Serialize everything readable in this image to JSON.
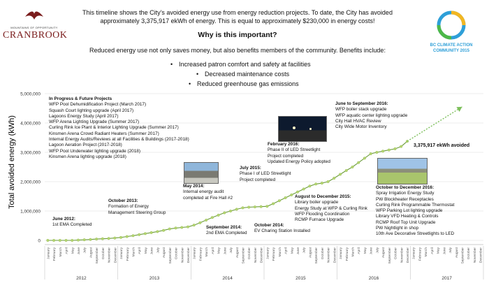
{
  "header": {
    "intro_line1": "This timeline shows the City’s avoided energy use from energy reduction projects. To date, the City has avoided",
    "intro_line2": "approximately 3,375,917 ekWh of energy. This is equal to approximately $230,000 in energy costs!",
    "question": "Why is this important?",
    "benefits_intro": "Reduced energy use not only saves money, but also benefits members of the community. Benefits include:",
    "benefits": [
      "Increased patron comfort and safety at facilities",
      "Decreased maintenance costs",
      "Reduced greenhouse gas emissions"
    ]
  },
  "logo_left": {
    "tagline": "MOUNTAINS OF OPPORTUNITY",
    "name": "CRANBROOK"
  },
  "logo_right": {
    "line1": "BC CLIMATE ACTION",
    "line2": "COMMUNITY 2015"
  },
  "chart_data": {
    "type": "line",
    "ylabel": "Total avoided energy (kWh)",
    "ylim": [
      0,
      5000000
    ],
    "yticks": [
      "0",
      "1,000,000",
      "2,000,000",
      "3,000,000",
      "4,000,000",
      "5,000,000"
    ],
    "month_labels": [
      "January",
      "February",
      "March",
      "April",
      "May",
      "June",
      "July",
      "August",
      "September",
      "October",
      "November",
      "December"
    ],
    "years": [
      "2012",
      "2013",
      "2014",
      "2015",
      "2016",
      "2017"
    ],
    "x_start": "2012-01",
    "series": [
      {
        "values": [
          0,
          0,
          0,
          0,
          0,
          10000,
          20000,
          30000,
          45000,
          55000,
          65000,
          80000,
          100000,
          130000,
          160000,
          195000,
          230000,
          265000,
          300000,
          340000,
          390000,
          420000,
          440000,
          460000,
          520000,
          600000,
          690000,
          780000,
          860000,
          940000,
          1000000,
          1060000,
          1110000,
          1130000,
          1140000,
          1150000,
          1160000,
          1250000,
          1350000,
          1450000,
          1550000,
          1650000,
          1750000,
          1850000,
          1920000,
          1950000,
          2000000,
          2120000,
          2250000,
          2380000,
          2500000,
          2650000,
          2800000,
          2950000,
          3000000,
          3040000,
          3080000,
          3120000,
          3200000,
          3375917
        ],
        "point_color": "#b6d672",
        "line_color": "#6a9a3a"
      }
    ],
    "projection": {
      "from": "2016-12",
      "to": "2017-09",
      "from_value": 3375917,
      "to_value": 4550000,
      "color": "#7cbf5a"
    },
    "end_label": "3,375,917 ekWh avoided"
  },
  "annotations": {
    "progress_title": "In Progress & Future Projects",
    "progress_items": [
      "WFP Pool Dehumidification Project (March 2017)",
      "Squash Court lighting upgrade (April 2017)",
      "Lagoons Energy Study (April 2017)",
      "WFP Arena Lighting Upgrade (Summer 2017)",
      "Curling Rink Ice Plant & Interior Lighting Upgrade (Summer 2017)",
      "Kinsmen Arena Crowd Radiant Heaters (Summer 2017)",
      "Internal Energy Audits/Reviews at all Facilities & Buildings (2017-2018)",
      "Lagoon Aeration Project (2017-2018)",
      "WFP Pool Underwater lighting upgrade (2018)",
      "Kinsmen Arena lighting upgrade (2018)"
    ],
    "june2012": {
      "date": "June 2012:",
      "text": [
        "1st EMA Completed"
      ]
    },
    "oct2013": {
      "date": "October 2013:",
      "text": [
        "Formation of Energy",
        "Management Steering Group"
      ]
    },
    "may2014": {
      "date": "May 2014:",
      "text": [
        "Internal energy audit",
        "completed at Fire Hall #2"
      ]
    },
    "sep2014": {
      "date": "September 2014:",
      "text": [
        "2nd EMA Completed"
      ]
    },
    "oct2014": {
      "date": "October 2014:",
      "text": [
        "EV Charing Station Installed"
      ]
    },
    "jul2015": {
      "date": "July 2015:",
      "text": [
        "Phase I of LED Streetlight",
        "Project completed"
      ]
    },
    "aug2015": {
      "date": "August to December 2015:",
      "text": [
        "Library boiler upgrade",
        "Energy Study at WFP & Curling Rink",
        "WFP Flooding Coordination",
        "RCMP Furnace Upgrade"
      ]
    },
    "feb2016": {
      "date": "February 2016:",
      "text": [
        "Phase II of LED Streetlight",
        "Project completed",
        "Updated Energy Policy adopted"
      ]
    },
    "jun2016": {
      "date": "June to September 2016:",
      "text": [
        "WFP boiler stack upgrade",
        "WFP aquatic center lighting upgrade",
        "City Hall HVAC Review",
        "City Wide Motor Inventory"
      ]
    },
    "oct2016": {
      "date": "October to December 2016:",
      "text": [
        "Spray Irrigation Energy Study",
        "PW Blockheater Receptacles",
        "Curling Rink Programmable Thermostat",
        "WFP Parking Lot lighting upgrade",
        "Library VFD Heating & Controls",
        "RCMP Roof Top Unit Upgrade",
        "PW Nightlight in shop",
        "10th Ave Decorative Streetlights to LED"
      ]
    }
  }
}
